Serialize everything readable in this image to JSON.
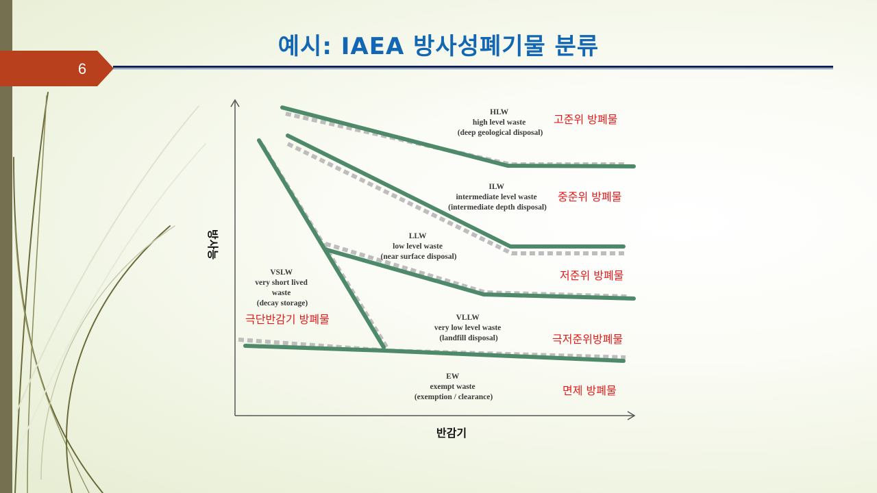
{
  "slide": {
    "title": "예시: IAEA 방사성폐기물 분류",
    "number": "6"
  },
  "axes": {
    "y_label": "방사능",
    "x_label": "반감기"
  },
  "categories": [
    {
      "id": "hlw",
      "lines": [
        "HLW",
        "high level waste",
        "(deep geological disposal)"
      ],
      "korean": "고준위 방폐물"
    },
    {
      "id": "ilw",
      "lines": [
        "ILW",
        "intermediate level waste",
        "(intermediate depth disposal)"
      ],
      "korean": "중준위 방폐물"
    },
    {
      "id": "llw",
      "lines": [
        "LLW",
        "low level waste",
        "(near surface disposal)"
      ],
      "korean": "저준위 방폐물"
    },
    {
      "id": "vslw",
      "lines": [
        "VSLW",
        "very short lived",
        "waste",
        "(decay storage)"
      ],
      "korean": "극단반감기 방폐물"
    },
    {
      "id": "vllw",
      "lines": [
        "VLLW",
        "very low level waste",
        "(landfill disposal)"
      ],
      "korean": "극저준위방폐물"
    },
    {
      "id": "ew",
      "lines": [
        "EW",
        "exempt waste",
        "(exemption / clearance)"
      ],
      "korean": "면제 방폐물"
    }
  ],
  "colors": {
    "title": "#1266b3",
    "korean_labels": "#e31b1b",
    "boundary_lines": "#4e8a6a",
    "boundary_shadow": "#bdbdbd",
    "number_tab": "#b8401c",
    "left_bar": "#75704f"
  }
}
